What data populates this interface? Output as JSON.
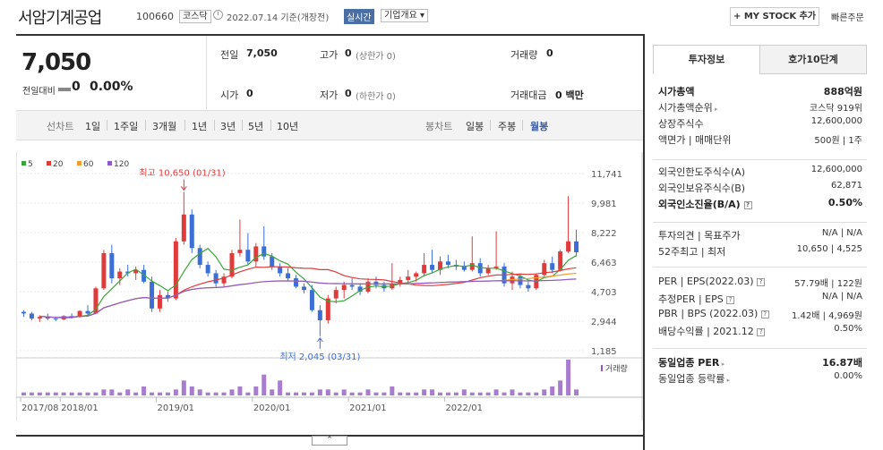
{
  "header": {
    "company": "서암기계공업",
    "code": "100660",
    "market_badge": "코스닥",
    "date": "2022.07.14 기준(개장전)",
    "realtime": "실시간",
    "summary": "기업개요",
    "summary_caret": "▾",
    "mystock": "+ MY STOCK 추가",
    "quick_order": "빠른주문"
  },
  "price": {
    "current": "7,050",
    "prevdiff_label": "전일대비",
    "prevdiff": "0",
    "prevdiff_pct": "0.00%",
    "cells": {
      "prev_label": "전일",
      "prev_value": "7,050",
      "high_label": "고가",
      "high_value": "0",
      "high_sub": "(상한가 0)",
      "vol_label": "거래량",
      "vol_value": "0",
      "open_label": "시가",
      "open_value": "0",
      "low_label": "저가",
      "low_value": "0",
      "low_sub": "(하한가 0)",
      "amt_label": "거래대금",
      "amt_value": "0 백만"
    }
  },
  "period": {
    "line_label": "선차트",
    "line_items": [
      "1일",
      "1주일",
      "3개월",
      "1년",
      "3년",
      "5년",
      "10년"
    ],
    "candle_label": "봉차트",
    "candle_items": [
      "일봉",
      "주봉",
      "월봉"
    ]
  },
  "chart_data": {
    "type": "candlestick",
    "legend": [
      {
        "name": "5",
        "color": "#3aa53a"
      },
      {
        "name": "20",
        "color": "#e03b3b"
      },
      {
        "name": "60",
        "color": "#f29b2c"
      },
      {
        "name": "120",
        "color": "#8c5ac8"
      }
    ],
    "y_ticks": [
      "11,741",
      "9,981",
      "8,222",
      "6,463",
      "4,703",
      "2,944",
      "1,185"
    ],
    "ylim": [
      1185,
      11741
    ],
    "x_ticks": [
      "2017/08",
      "2018/01",
      "2019/01",
      "2020/01",
      "2021/01",
      "2022/01"
    ],
    "annotation_high": "최고 10,650 (01/31)",
    "annotation_low": "최저 2,045 (03/31)",
    "volume_label": "거래량",
    "candles": [
      [
        3500,
        3600,
        3200,
        3400
      ],
      [
        3400,
        3500,
        3000,
        3100
      ],
      [
        3100,
        3300,
        2900,
        3200
      ],
      [
        3200,
        3400,
        3000,
        3100
      ],
      [
        3100,
        3200,
        2950,
        3050
      ],
      [
        3050,
        3300,
        3000,
        3250
      ],
      [
        3250,
        3400,
        3100,
        3200
      ],
      [
        3200,
        3600,
        3150,
        3550
      ],
      [
        3550,
        3900,
        3300,
        3400
      ],
      [
        3400,
        5000,
        3350,
        4900
      ],
      [
        4900,
        7200,
        4800,
        7000
      ],
      [
        7000,
        7500,
        5200,
        5500
      ],
      [
        5500,
        6100,
        5100,
        5900
      ],
      [
        5900,
        6300,
        5600,
        5800
      ],
      [
        5800,
        6200,
        5400,
        6000
      ],
      [
        6000,
        6300,
        5200,
        5300
      ],
      [
        5300,
        5600,
        3500,
        3700
      ],
      [
        3700,
        4800,
        3500,
        4500
      ],
      [
        4500,
        4700,
        4100,
        4300
      ],
      [
        4300,
        7900,
        4200,
        7700
      ],
      [
        7700,
        10650,
        7500,
        9300
      ],
      [
        9300,
        9600,
        7000,
        7300
      ],
      [
        7300,
        7500,
        6100,
        6300
      ],
      [
        6300,
        6500,
        5600,
        5800
      ],
      [
        5800,
        6000,
        5000,
        5200
      ],
      [
        5200,
        5800,
        5000,
        5600
      ],
      [
        5600,
        7200,
        5500,
        7000
      ],
      [
        7000,
        9000,
        6800,
        7200
      ],
      [
        7200,
        8200,
        6300,
        6500
      ],
      [
        6500,
        7600,
        6200,
        7400
      ],
      [
        7400,
        8600,
        6600,
        6800
      ],
      [
        6800,
        7000,
        6000,
        6200
      ],
      [
        6200,
        6400,
        5600,
        5800
      ],
      [
        5800,
        6100,
        5300,
        5500
      ],
      [
        5500,
        5700,
        4900,
        5000
      ],
      [
        5000,
        5200,
        4600,
        4800
      ],
      [
        4800,
        5100,
        3500,
        3600
      ],
      [
        3600,
        3900,
        2045,
        3000
      ],
      [
        3000,
        4500,
        2800,
        4300
      ],
      [
        4300,
        5000,
        4000,
        4800
      ],
      [
        4800,
        5300,
        4300,
        5100
      ],
      [
        5100,
        5500,
        4800,
        5000
      ],
      [
        5000,
        5200,
        4500,
        4700
      ],
      [
        4700,
        5500,
        4600,
        5300
      ],
      [
        5300,
        5600,
        4900,
        5100
      ],
      [
        5100,
        5300,
        4700,
        4900
      ],
      [
        4900,
        6400,
        4800,
        5200
      ],
      [
        5200,
        5600,
        5000,
        5400
      ],
      [
        5400,
        6000,
        5200,
        5600
      ],
      [
        5600,
        5900,
        5300,
        5800
      ],
      [
        5800,
        7000,
        5600,
        6300
      ],
      [
        6300,
        7200,
        5800,
        6000
      ],
      [
        6000,
        6800,
        5700,
        6500
      ],
      [
        6500,
        6900,
        6100,
        6300
      ],
      [
        6300,
        6600,
        6000,
        6200
      ],
      [
        6200,
        6500,
        5900,
        6000
      ],
      [
        6000,
        8000,
        5900,
        6400
      ],
      [
        6400,
        6700,
        5600,
        5800
      ],
      [
        5800,
        6300,
        5700,
        6100
      ],
      [
        6100,
        8300,
        6000,
        6200
      ],
      [
        6200,
        6400,
        5000,
        5200
      ],
      [
        5200,
        5900,
        4800,
        5600
      ],
      [
        5600,
        5800,
        4900,
        5100
      ],
      [
        5100,
        5300,
        4700,
        4900
      ],
      [
        4900,
        5800,
        4800,
        5700
      ],
      [
        5700,
        6600,
        5500,
        6400
      ],
      [
        6400,
        6800,
        5800,
        6000
      ],
      [
        6000,
        7200,
        5900,
        7100
      ],
      [
        7100,
        10400,
        7000,
        7700
      ],
      [
        7700,
        8400,
        6800,
        7050
      ]
    ],
    "volumes": [
      1,
      1,
      1,
      1,
      1,
      1,
      1,
      1,
      1,
      1,
      2,
      2,
      1,
      2,
      1,
      3,
      1,
      1,
      1,
      2,
      5,
      3,
      2,
      1,
      1,
      1,
      2,
      3,
      1,
      3,
      7,
      2,
      5,
      1,
      1,
      1,
      1,
      2,
      2,
      1,
      2,
      1,
      1,
      2,
      1,
      1,
      3,
      1,
      1,
      1,
      2,
      2,
      1,
      1,
      1,
      2,
      1,
      1,
      1,
      2,
      1,
      2,
      1,
      1,
      1,
      2,
      3,
      5,
      12,
      2
    ]
  },
  "invest": {
    "tab_active": "투자정보",
    "tab_other": "호가10단계",
    "rows1": [
      {
        "l": "시가총액",
        "r": "888억원",
        "bold": true
      },
      {
        "l": "시가총액순위",
        "tri": true,
        "r": "코스닥 919위"
      },
      {
        "l": "상장주식수",
        "r": "12,600,000"
      },
      {
        "l": "액면가 | 매매단위",
        "r": "500원 | 1주"
      }
    ],
    "rows2": [
      {
        "l": "외국인한도주식수(A)",
        "r": "12,600,000"
      },
      {
        "l": "외국인보유주식수(B)",
        "r": "62,871"
      },
      {
        "l": "외국인소진율(B/A)",
        "info": "?",
        "r": "0.50%",
        "bold": true
      }
    ],
    "rows3": [
      {
        "l": "투자의견 | 목표주가",
        "r": "N/A | N/A"
      },
      {
        "l": "52주최고 | 최저",
        "r": "10,650 | 4,525"
      }
    ],
    "rows4": [
      {
        "l": "PER | EPS(2022.03)",
        "info": "?",
        "r": "57.79배 | 122원"
      },
      {
        "l": "추정PER | EPS",
        "info": "?",
        "r": "N/A | N/A"
      },
      {
        "l": "PBR | BPS (2022.03)",
        "info": "?",
        "r": "1.42배 | 4,969원"
      },
      {
        "l": "배당수익률 | 2021.12",
        "info": "?",
        "r": "0.50%"
      }
    ],
    "rows5": [
      {
        "l": "동일업종 PER",
        "tri": true,
        "r": "16.87배",
        "bold": true
      },
      {
        "l": "동일업종 등락률",
        "tri": true,
        "r": "0.00%"
      }
    ]
  }
}
